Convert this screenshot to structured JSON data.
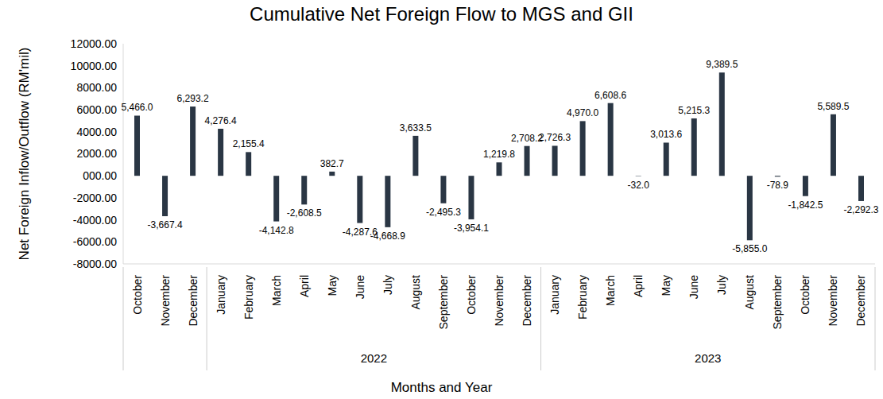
{
  "chart_data": {
    "type": "bar",
    "title": "Cumulative Net Foreign Flow to MGS and GII",
    "x_label": "Months and Year",
    "y_label": "Net Foreign Inflow/Outflow (RM'mil)",
    "categories": [
      "October",
      "November",
      "December",
      "January",
      "February",
      "March",
      "April",
      "May",
      "June",
      "July",
      "August",
      "September",
      "October",
      "November",
      "December",
      "January",
      "February",
      "March",
      "April",
      "May",
      "June",
      "July",
      "August",
      "September",
      "October",
      "November",
      "December"
    ],
    "years": [
      null,
      null,
      null,
      "2022",
      "2022",
      "2022",
      "2022",
      "2022",
      "2022",
      "2022",
      "2022",
      "2022",
      "2022",
      "2022",
      "2022",
      "2023",
      "2023",
      "2023",
      "2023",
      "2023",
      "2023",
      "2023",
      "2023",
      "2023",
      "2023",
      "2023",
      "2023"
    ],
    "values": [
      5466.0,
      -3667.4,
      6293.2,
      4276.4,
      2155.4,
      -4142.8,
      -2608.5,
      382.7,
      -4287.6,
      -4668.9,
      3633.5,
      -2495.3,
      -3954.1,
      1219.8,
      2708.2,
      2726.3,
      4970.0,
      6608.6,
      -32.0,
      3013.6,
      5215.3,
      9389.5,
      -5855.0,
      -78.9,
      -1842.5,
      5589.5,
      -2292.3
    ],
    "value_labels": [
      "5,466.0",
      "-3,667.4",
      "6,293.2",
      "4,276.4",
      "2,155.4",
      "-4,142.8",
      "-2,608.5",
      "382.7",
      "-4,287.6",
      "-4,668.9",
      "3,633.5",
      "-2,495.3",
      "-3,954.1",
      "1,219.8",
      "2,708.2",
      "2,726.3",
      "4,970.0",
      "6,608.6",
      "-32.0",
      "3,013.6",
      "5,215.3",
      "9,389.5",
      "-5,855.0",
      "-78.9",
      "-1,842.5",
      "5,589.5",
      "-2,292.3"
    ],
    "color": "#2a3644",
    "ylim": [
      -8000,
      12000
    ],
    "yticks": [
      {
        "value": -8000,
        "label": "-8000.00"
      },
      {
        "value": -6000,
        "label": "-6000.00"
      },
      {
        "value": -4000,
        "label": "-4000.00"
      },
      {
        "value": -2000,
        "label": "-2000.00"
      },
      {
        "value": 0,
        "label": "000.00"
      },
      {
        "value": 2000,
        "label": "2000.00"
      },
      {
        "value": 4000,
        "label": "4000.00"
      },
      {
        "value": 6000,
        "label": "6000.00"
      },
      {
        "value": 8000,
        "label": "8000.00"
      },
      {
        "value": 10000,
        "label": "10000.00"
      },
      {
        "value": 12000,
        "label": "12000.00"
      }
    ],
    "grid": false,
    "data_labels": true
  }
}
